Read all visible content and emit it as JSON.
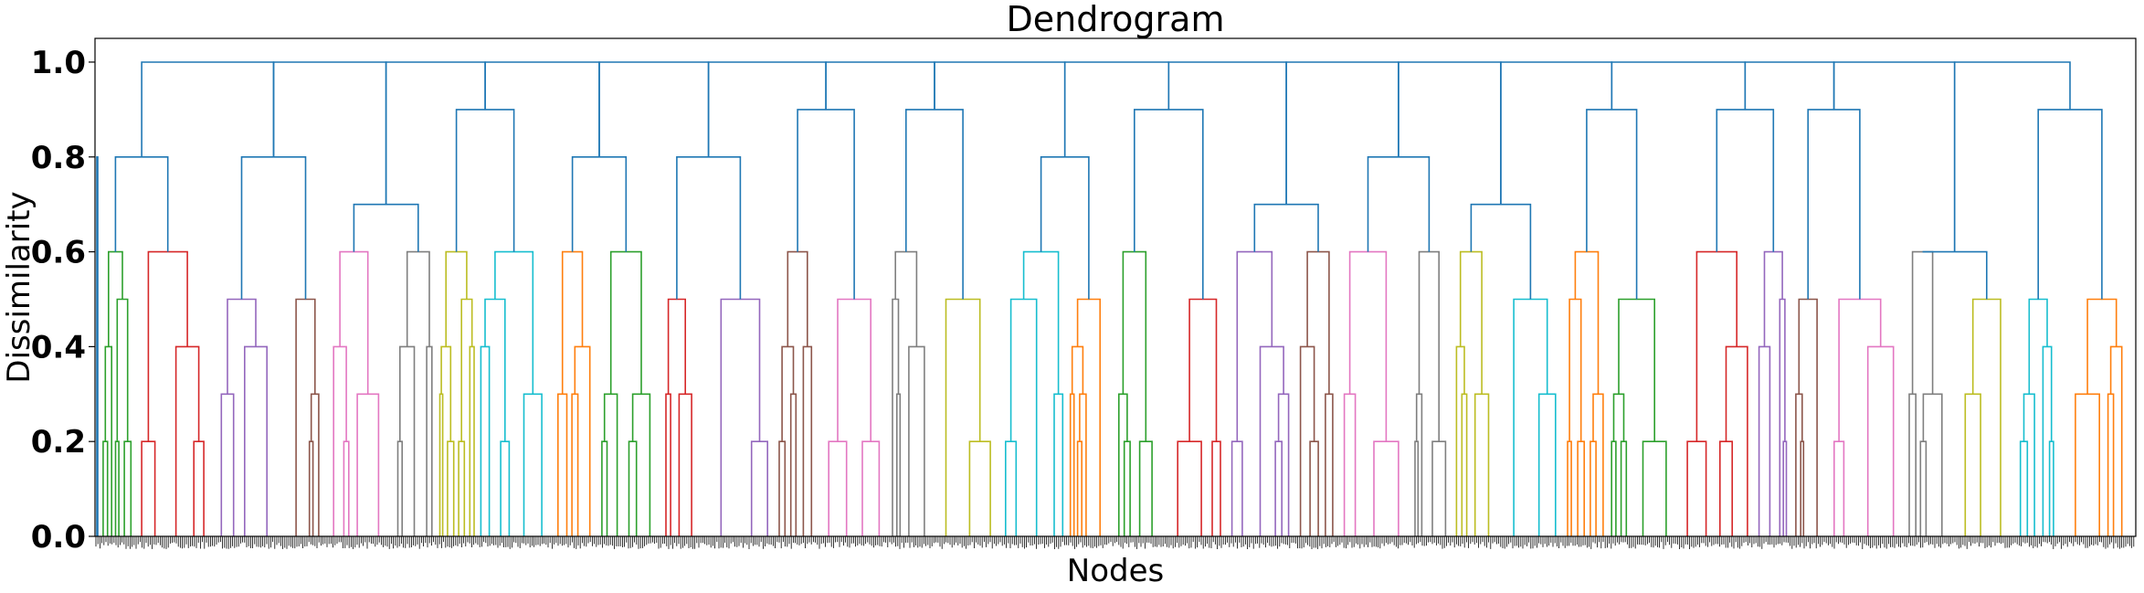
{
  "chart_data": {
    "type": "dendrogram",
    "title": "Dendrogram",
    "xlabel": "Nodes",
    "ylabel": "Dissimilarity",
    "ylim": [
      0,
      1.05
    ],
    "yticks": [
      "0.0",
      "0.2",
      "0.4",
      "0.6",
      "0.8",
      "1.0"
    ],
    "ytick_values": [
      0.0,
      0.2,
      0.4,
      0.6,
      0.8,
      1.0
    ],
    "grid": false,
    "palette": {
      "above_threshold": "#1f77b4",
      "clusters": [
        "#2ca02c",
        "#d62728",
        "#9467bd",
        "#8c564b",
        "#e377c2",
        "#7f7f7f",
        "#bcbd22",
        "#17becf",
        "#ff7f0e"
      ]
    },
    "top_level_merges_at": 1.0,
    "subtree_heights": [
      0.8,
      0.8,
      0.7,
      0.9,
      0.8,
      0.8,
      0.9,
      0.9,
      0.8,
      0.9,
      0.7,
      0.8,
      0.7,
      0.9,
      0.9,
      0.9,
      0.6,
      0.9
    ]
  }
}
